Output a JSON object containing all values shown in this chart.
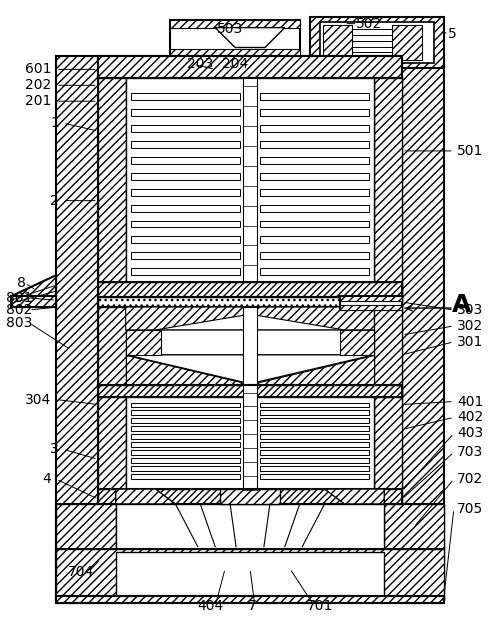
{
  "bg_color": "#ffffff",
  "lc": "#000000",
  "figsize": [
    5.0,
    6.32
  ],
  "dpi": 100
}
